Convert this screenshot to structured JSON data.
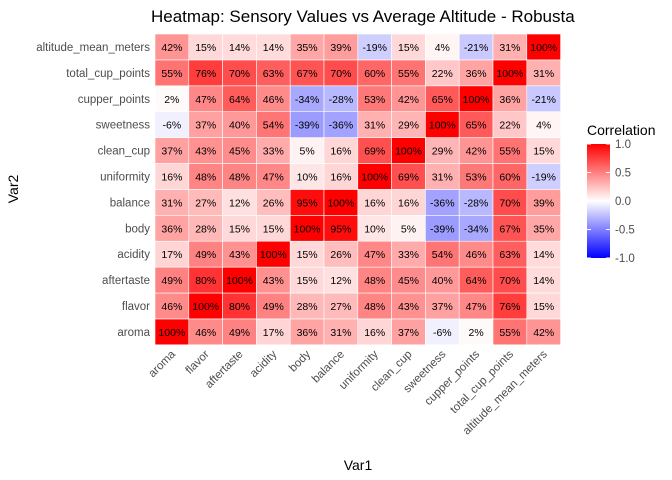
{
  "chart_data": {
    "type": "heatmap",
    "title": "Heatmap: Sensory Values vs Average Altitude - Robusta",
    "xlabel": "Var1",
    "ylabel": "Var2",
    "x_categories": [
      "aroma",
      "flavor",
      "aftertaste",
      "acidity",
      "body",
      "balance",
      "uniformity",
      "clean_cup",
      "sweetness",
      "cupper_points",
      "total_cup_points",
      "altitude_mean_meters"
    ],
    "y_categories": [
      "aroma",
      "flavor",
      "aftertaste",
      "acidity",
      "body",
      "balance",
      "uniformity",
      "clean_cup",
      "sweetness",
      "cupper_points",
      "total_cup_points",
      "altitude_mean_meters"
    ],
    "values": [
      [
        100,
        46,
        49,
        17,
        36,
        31,
        16,
        37,
        -6,
        2,
        55,
        42
      ],
      [
        46,
        100,
        80,
        49,
        28,
        27,
        48,
        43,
        37,
        47,
        76,
        15
      ],
      [
        49,
        80,
        100,
        43,
        15,
        12,
        48,
        45,
        40,
        64,
        70,
        14
      ],
      [
        17,
        49,
        43,
        100,
        15,
        26,
        47,
        33,
        54,
        46,
        63,
        14
      ],
      [
        36,
        28,
        15,
        15,
        100,
        95,
        10,
        5,
        -39,
        -34,
        67,
        35
      ],
      [
        31,
        27,
        12,
        26,
        95,
        100,
        16,
        16,
        -36,
        -28,
        70,
        39
      ],
      [
        16,
        48,
        48,
        47,
        10,
        16,
        100,
        69,
        31,
        53,
        60,
        -19
      ],
      [
        37,
        43,
        45,
        33,
        5,
        16,
        69,
        100,
        29,
        42,
        55,
        15
      ],
      [
        -6,
        37,
        40,
        54,
        -39,
        -36,
        31,
        29,
        100,
        65,
        22,
        4
      ],
      [
        2,
        47,
        64,
        46,
        -34,
        -28,
        53,
        42,
        65,
        100,
        36,
        -21
      ],
      [
        55,
        76,
        70,
        63,
        67,
        70,
        60,
        55,
        22,
        36,
        100,
        31
      ],
      [
        42,
        15,
        14,
        14,
        35,
        39,
        -19,
        15,
        4,
        -21,
        31,
        100
      ]
    ],
    "value_format": "percent",
    "color_scale": {
      "low": "#0000ff",
      "mid": "#ffffff",
      "high": "#ff0000",
      "limits": [
        -1,
        1
      ]
    },
    "legend": {
      "title": "Correlation",
      "ticks": [
        "1.0",
        "0.5",
        "0.0",
        "-0.5",
        "-1.0"
      ],
      "tick_values": [
        1.0,
        0.5,
        0.0,
        -0.5,
        -1.0
      ],
      "placement": "right"
    }
  }
}
